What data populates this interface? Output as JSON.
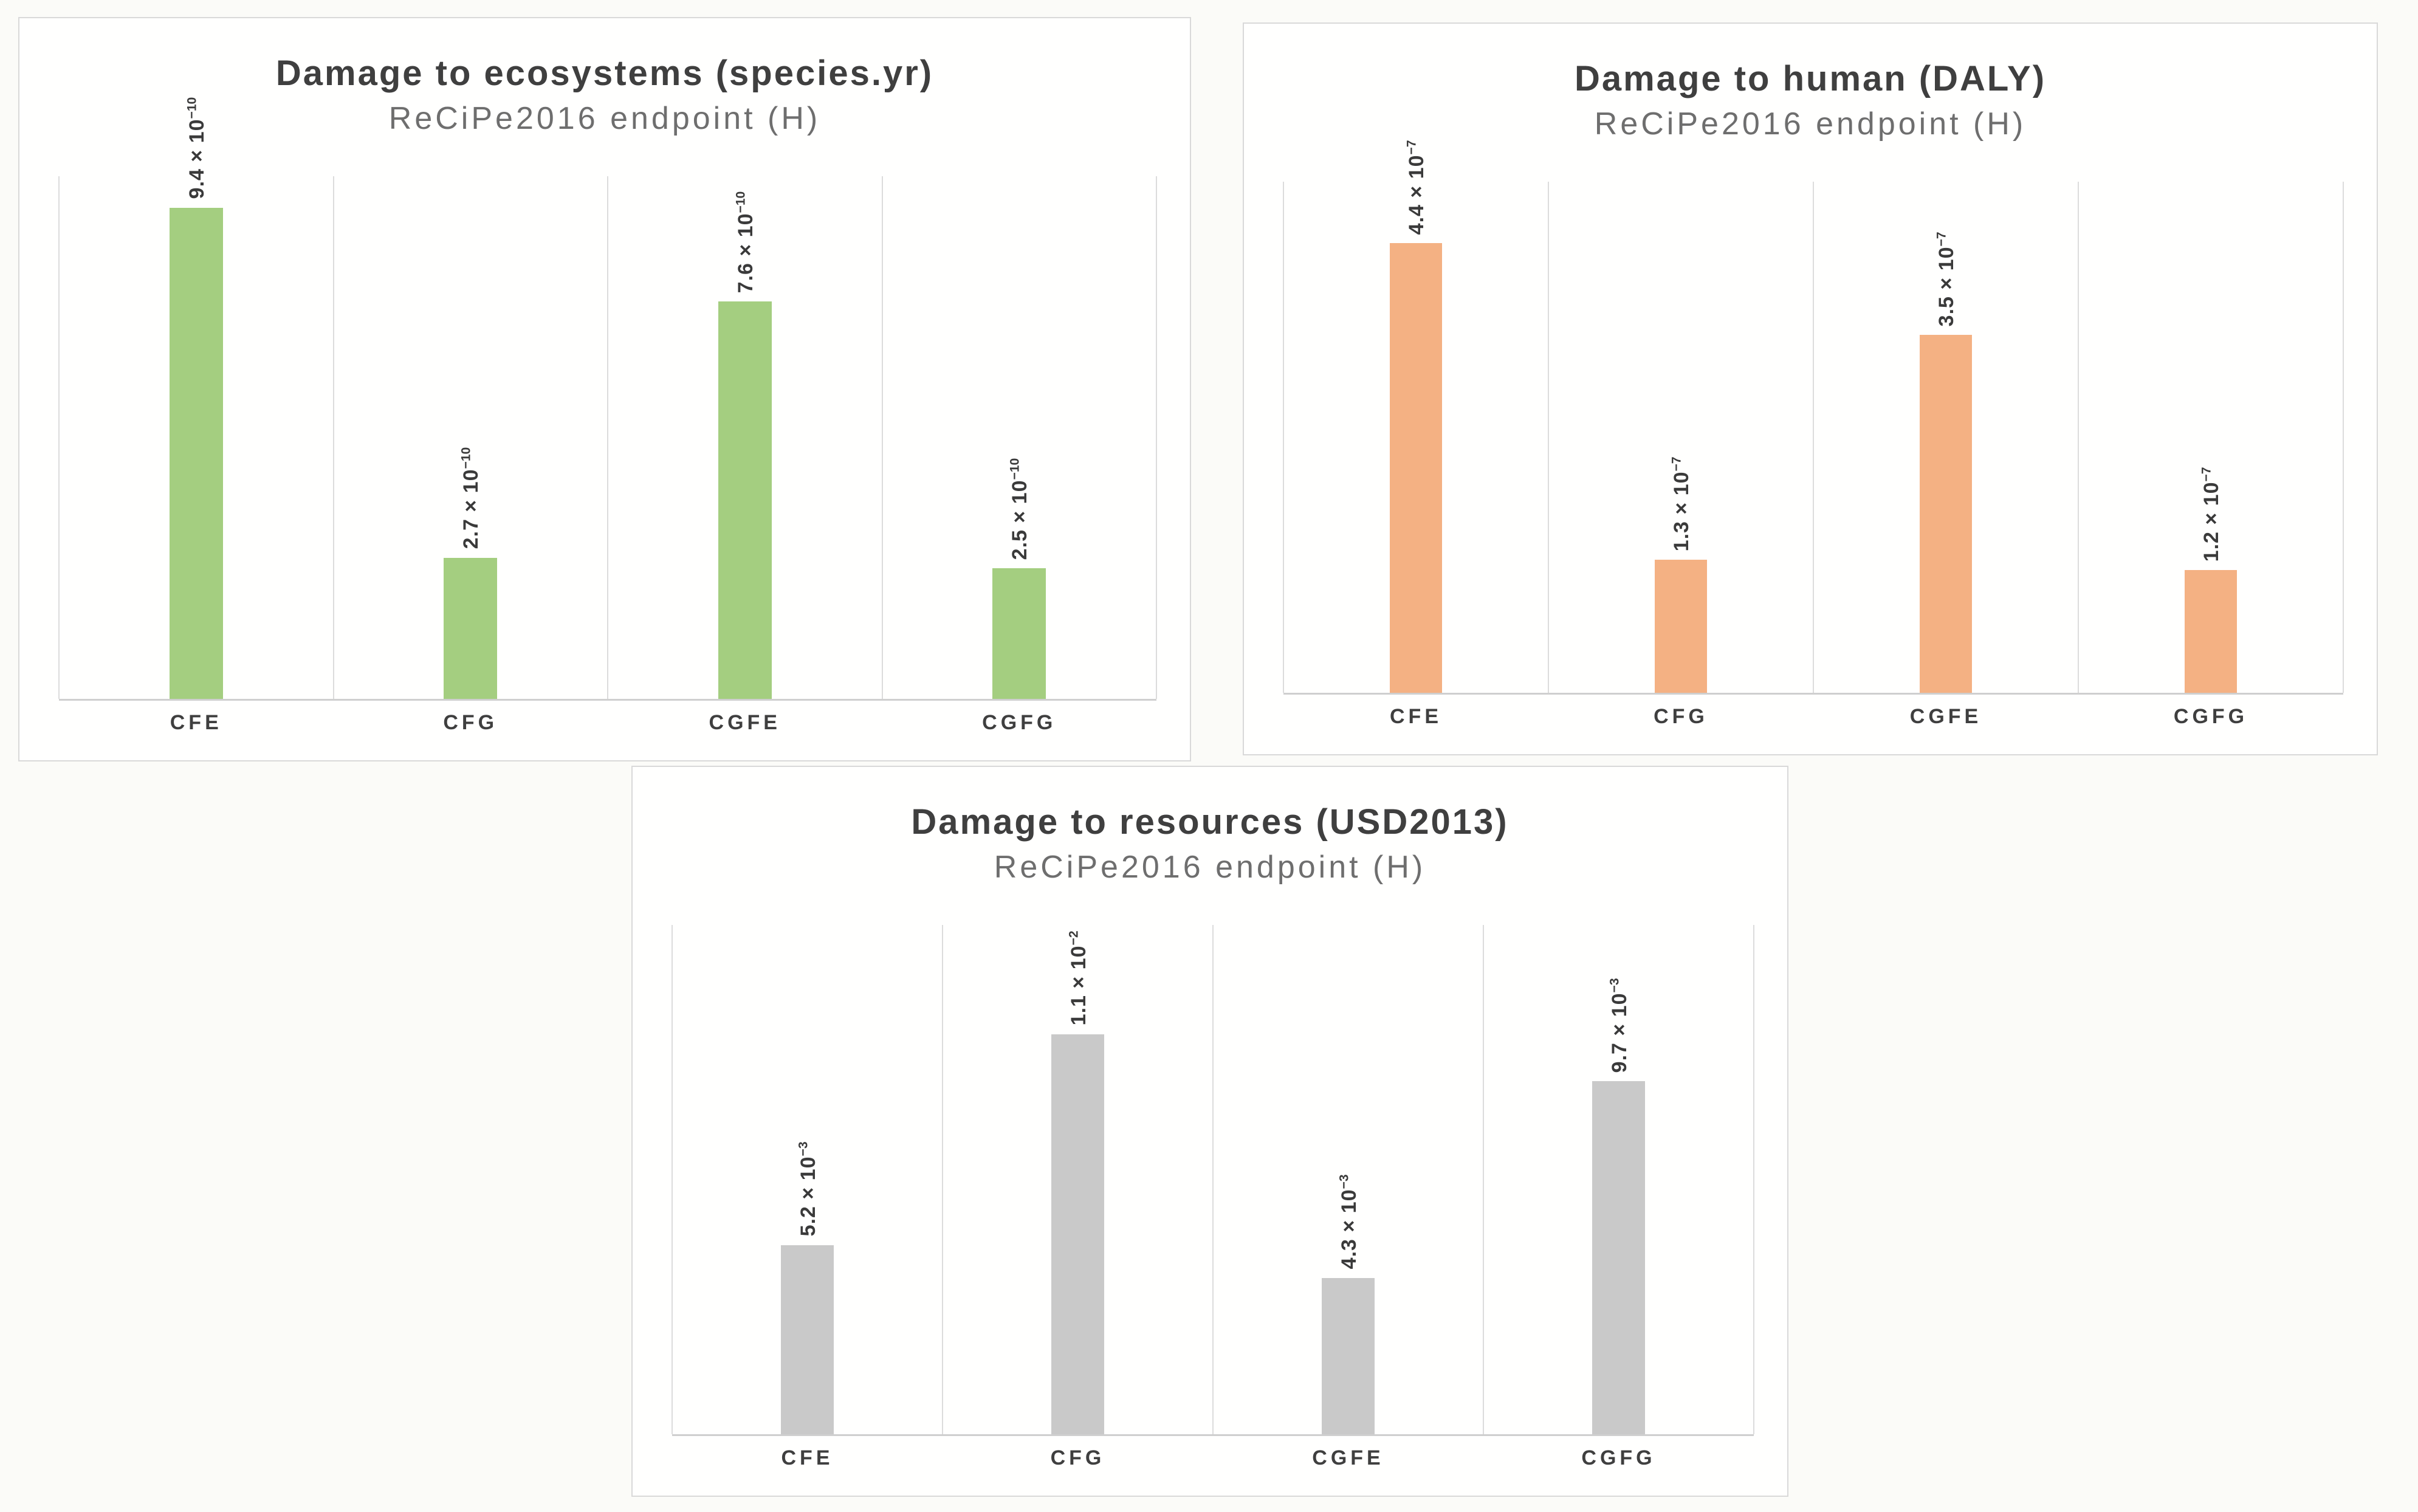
{
  "page": {
    "background": "#fbfbf8",
    "panel_border": "#d9d9d9",
    "gridline_color": "#dcdcdc",
    "axis_color": "#cfcfcf",
    "title_color": "#3f3f3f",
    "subtitle_color": "#6e6e6e",
    "label_color": "#3a3a3a"
  },
  "chart_data": [
    {
      "type": "bar",
      "title": "Damage to ecosystems (species.yr)",
      "subtitle": "ReCiPe2016 endpoint (H)",
      "unit": "species.yr",
      "categories": [
        "CFE",
        "CFG",
        "CGFE",
        "CGFG"
      ],
      "values": [
        9.4e-10,
        2.7e-10,
        7.6e-10,
        2.5e-10
      ],
      "value_labels": [
        {
          "base": "9.4 × 10",
          "sup": "−10"
        },
        {
          "base": "2.7 × 10",
          "sup": "−10"
        },
        {
          "base": "7.6 × 10",
          "sup": "−10"
        },
        {
          "base": "2.5 × 10",
          "sup": "−10"
        }
      ],
      "ylim": [
        0,
        1e-09
      ],
      "bar_color": "#a4ce80",
      "grid": "vertical-category-separators",
      "legend": "none"
    },
    {
      "type": "bar",
      "title": "Damage to human (DALY)",
      "subtitle": "ReCiPe2016 endpoint (H)",
      "unit": "DALY",
      "categories": [
        "CFE",
        "CFG",
        "CGFE",
        "CGFG"
      ],
      "values": [
        4.4e-07,
        1.3e-07,
        3.5e-07,
        1.2e-07
      ],
      "value_labels": [
        {
          "base": "4.4 × 10",
          "sup": "−7"
        },
        {
          "base": "1.3 × 10",
          "sup": "−7"
        },
        {
          "base": "3.5 × 10",
          "sup": "−7"
        },
        {
          "base": "1.2 × 10",
          "sup": "−7"
        }
      ],
      "ylim": [
        0,
        5e-07
      ],
      "bar_color": "#f4b183",
      "grid": "vertical-category-separators",
      "legend": "none"
    },
    {
      "type": "bar",
      "title": "Damage to resources (USD2013)",
      "subtitle": "ReCiPe2016 endpoint (H)",
      "unit": "USD2013",
      "categories": [
        "CFE",
        "CFG",
        "CGFE",
        "CGFG"
      ],
      "values": [
        0.0052,
        0.011,
        0.0043,
        0.0097
      ],
      "value_labels": [
        {
          "base": "5.2 × 10",
          "sup": "−3"
        },
        {
          "base": "1.1 × 10",
          "sup": "−2"
        },
        {
          "base": "4.3 × 10",
          "sup": "−3"
        },
        {
          "base": "9.7 × 10",
          "sup": "−3"
        }
      ],
      "ylim": [
        0,
        0.014
      ],
      "bar_color": "#c9c9c9",
      "grid": "vertical-category-separators",
      "legend": "none"
    }
  ]
}
